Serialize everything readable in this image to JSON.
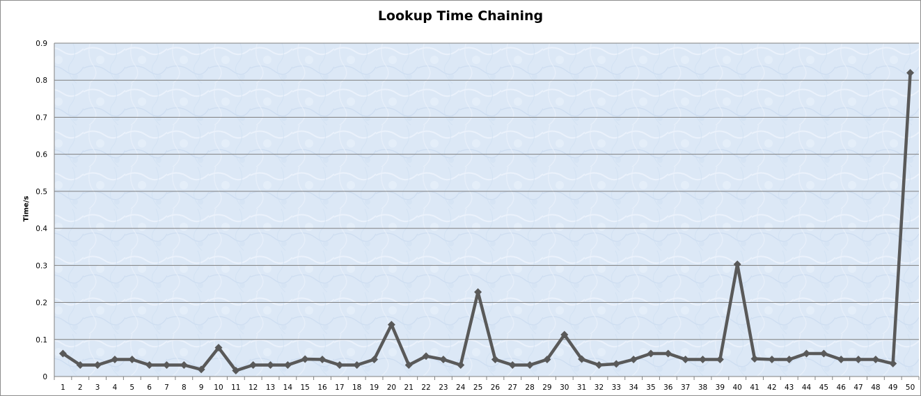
{
  "chart_data": {
    "type": "line",
    "title": "Lookup Time Chaining",
    "xlabel": "",
    "ylabel": "Time/s",
    "ylim": [
      0,
      0.9
    ],
    "yticks": [
      0,
      0.1,
      0.2,
      0.3,
      0.4,
      0.5,
      0.6,
      0.7,
      0.8,
      0.9
    ],
    "y_tick_labels": [
      "0",
      "0.1",
      "0.2",
      "0.3",
      "0.4",
      "0.5",
      "0.6",
      "0.7",
      "0.8",
      "0.9"
    ],
    "grid": "horizontal",
    "legend": "none",
    "line_color": "#595959",
    "plot_background": "#dde9f7",
    "categories": [
      "1",
      "2",
      "3",
      "4",
      "5",
      "6",
      "7",
      "8",
      "9",
      "10",
      "11",
      "12",
      "13",
      "14",
      "15",
      "16",
      "17",
      "18",
      "19",
      "20",
      "21",
      "22",
      "23",
      "24",
      "25",
      "26",
      "27",
      "28",
      "29",
      "30",
      "31",
      "32",
      "33",
      "34",
      "35",
      "36",
      "37",
      "38",
      "39",
      "40",
      "41",
      "42",
      "43",
      "44",
      "45",
      "46",
      "47",
      "48",
      "49",
      "50"
    ],
    "values": [
      0.062,
      0.031,
      0.031,
      0.046,
      0.046,
      0.031,
      0.031,
      0.031,
      0.019,
      0.078,
      0.016,
      0.031,
      0.031,
      0.031,
      0.047,
      0.046,
      0.031,
      0.031,
      0.046,
      0.14,
      0.031,
      0.055,
      0.046,
      0.031,
      0.228,
      0.046,
      0.031,
      0.031,
      0.046,
      0.113,
      0.047,
      0.031,
      0.034,
      0.046,
      0.062,
      0.062,
      0.046,
      0.046,
      0.046,
      0.303,
      0.048,
      0.046,
      0.046,
      0.062,
      0.062,
      0.046,
      0.046,
      0.046,
      0.035,
      0.82
    ]
  }
}
